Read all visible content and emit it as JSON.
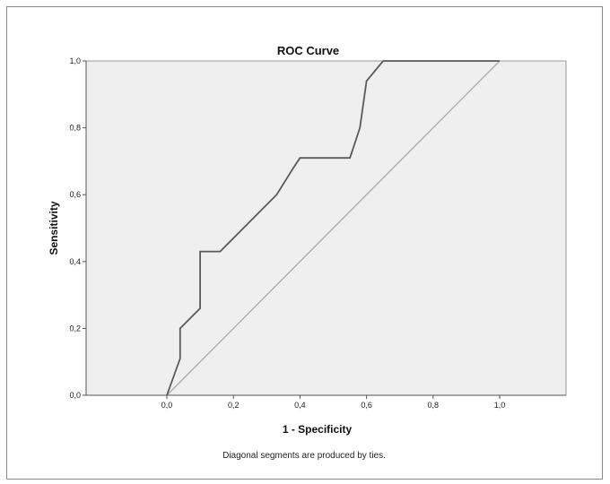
{
  "chart_data": {
    "type": "line",
    "title": "ROC Curve",
    "xlabel": "1 - Specificity",
    "ylabel": "Sensitivity",
    "xlim": [
      0,
      1
    ],
    "ylim": [
      0,
      1
    ],
    "x_ticks": [
      "0,0",
      "0,2",
      "0,4",
      "0,6",
      "0,8",
      "1,0"
    ],
    "y_ticks": [
      "0,0",
      "0,2",
      "0,4",
      "0,6",
      "0,8",
      "1,0"
    ],
    "grid": false,
    "series": [
      {
        "kind": "roc",
        "x": [
          0.0,
          0.04,
          0.04,
          0.1,
          0.1,
          0.16,
          0.33,
          0.38,
          0.4,
          0.55,
          0.58,
          0.6,
          0.65,
          1.0
        ],
        "y": [
          0.0,
          0.11,
          0.2,
          0.26,
          0.43,
          0.43,
          0.6,
          0.68,
          0.71,
          0.71,
          0.8,
          0.94,
          1.0,
          1.0
        ]
      },
      {
        "kind": "reference",
        "x": [
          0,
          1
        ],
        "y": [
          0,
          1
        ]
      }
    ],
    "footnote": "Diagonal segments are produced by ties.",
    "colors": {
      "plot_bg": "#efefef",
      "roc_line": "#5a5a5a",
      "ref_line": "#a9a9a9",
      "axis": "#555555"
    }
  }
}
